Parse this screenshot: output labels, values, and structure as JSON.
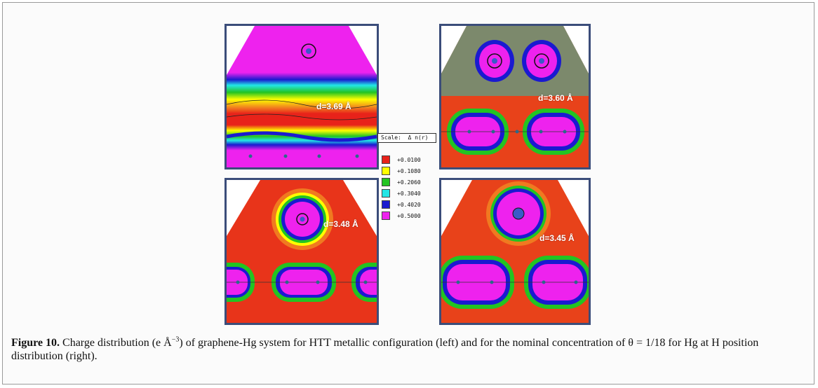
{
  "panels": [
    {
      "id": "top-left",
      "label": "d=3.69 Å"
    },
    {
      "id": "top-right",
      "label": "d=3.60 Å"
    },
    {
      "id": "bottom-left",
      "label": "d=3.48 Å"
    },
    {
      "id": "bottom-right",
      "label": "d=3.45 Å"
    }
  ],
  "scale": {
    "label": "Scale:",
    "quantity": "Δ n(r)"
  },
  "legend": [
    {
      "value": "+0.0100",
      "color": "#e8221a"
    },
    {
      "value": "+0.1080",
      "color": "#ffff00"
    },
    {
      "value": "+0.2060",
      "color": "#22c422"
    },
    {
      "value": "+0.3040",
      "color": "#22e6e6"
    },
    {
      "value": "+0.4020",
      "color": "#1a1ad0"
    },
    {
      "value": "+0.5000",
      "color": "#ee22ee"
    }
  ],
  "caption": {
    "figure_label": "Figure 10.",
    "text_before": " Charge distribution (e Å",
    "exponent": "−3",
    "text_after": ") of graphene-Hg system for HTT metallic configuration (left) and for the nominal concentration of θ = 1/18 for Hg at H position distribution (right)."
  }
}
